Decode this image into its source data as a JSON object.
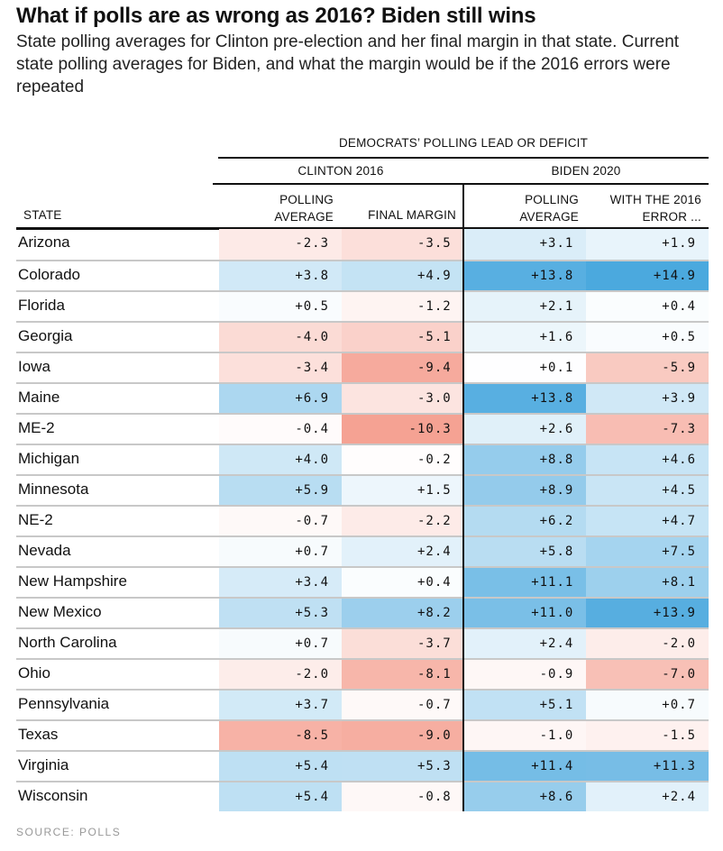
{
  "title": "What if polls are as wrong as 2016? Biden still wins",
  "subtitle": "State polling averages for Clinton pre-election and her final margin in that state. Current state polling averages for Biden, and what the margin would be if the 2016 errors were repeated",
  "source": "SOURCE: POLLS",
  "chart_data": {
    "type": "table",
    "super_header": "DEMOCRATS’ POLLING LEAD OR DEFICIT",
    "groups": [
      "CLINTON 2016",
      "BIDEN 2020"
    ],
    "columns": [
      "STATE",
      "POLLING AVERAGE",
      "FINAL MARGIN",
      "POLLING AVERAGE",
      "WITH THE 2016 ERROR ..."
    ],
    "column_lines": [
      [
        "STATE"
      ],
      [
        "POLLING",
        "AVERAGE"
      ],
      [
        "FINAL MARGIN"
      ],
      [
        "POLLING",
        "AVERAGE"
      ],
      [
        "WITH THE 2016",
        "ERROR ..."
      ]
    ],
    "colors": {
      "positive": "#4aa8de",
      "negative": "#f5a091"
    },
    "rows": [
      {
        "state": "Arizona",
        "values": [
          "-2.3",
          "-3.5",
          "+3.1",
          "+1.9"
        ]
      },
      {
        "state": "Colorado",
        "values": [
          "+3.8",
          "+4.9",
          "+13.8",
          "+14.9"
        ]
      },
      {
        "state": "Florida",
        "values": [
          "+0.5",
          "-1.2",
          "+2.1",
          "+0.4"
        ]
      },
      {
        "state": "Georgia",
        "values": [
          "-4.0",
          "-5.1",
          "+1.6",
          "+0.5"
        ]
      },
      {
        "state": "Iowa",
        "values": [
          "-3.4",
          "-9.4",
          "+0.1",
          "-5.9"
        ]
      },
      {
        "state": "Maine",
        "values": [
          "+6.9",
          "-3.0",
          "+13.8",
          "+3.9"
        ]
      },
      {
        "state": "ME-2",
        "values": [
          "-0.4",
          "-10.3",
          "+2.6",
          "-7.3"
        ]
      },
      {
        "state": "Michigan",
        "values": [
          "+4.0",
          "-0.2",
          "+8.8",
          "+4.6"
        ]
      },
      {
        "state": "Minnesota",
        "values": [
          "+5.9",
          "+1.5",
          "+8.9",
          "+4.5"
        ]
      },
      {
        "state": "NE-2",
        "values": [
          "-0.7",
          "-2.2",
          "+6.2",
          "+4.7"
        ]
      },
      {
        "state": "Nevada",
        "values": [
          "+0.7",
          "+2.4",
          "+5.8",
          "+7.5"
        ]
      },
      {
        "state": "New Hampshire",
        "values": [
          "+3.4",
          "+0.4",
          "+11.1",
          "+8.1"
        ]
      },
      {
        "state": "New Mexico",
        "values": [
          "+5.3",
          "+8.2",
          "+11.0",
          "+13.9"
        ]
      },
      {
        "state": "North Carolina",
        "values": [
          "+0.7",
          "-3.7",
          "+2.4",
          "-2.0"
        ]
      },
      {
        "state": "Ohio",
        "values": [
          "-2.0",
          "-8.1",
          "-0.9",
          "-7.0"
        ]
      },
      {
        "state": "Pennsylvania",
        "values": [
          "+3.7",
          "-0.7",
          "+5.1",
          "+0.7"
        ]
      },
      {
        "state": "Texas",
        "values": [
          "-8.5",
          "-9.0",
          "-1.0",
          "-1.5"
        ]
      },
      {
        "state": "Virginia",
        "values": [
          "+5.4",
          "+5.3",
          "+11.4",
          "+11.3"
        ]
      },
      {
        "state": "Wisconsin",
        "values": [
          "+5.4",
          "-0.8",
          "+8.6",
          "+2.4"
        ]
      }
    ]
  }
}
